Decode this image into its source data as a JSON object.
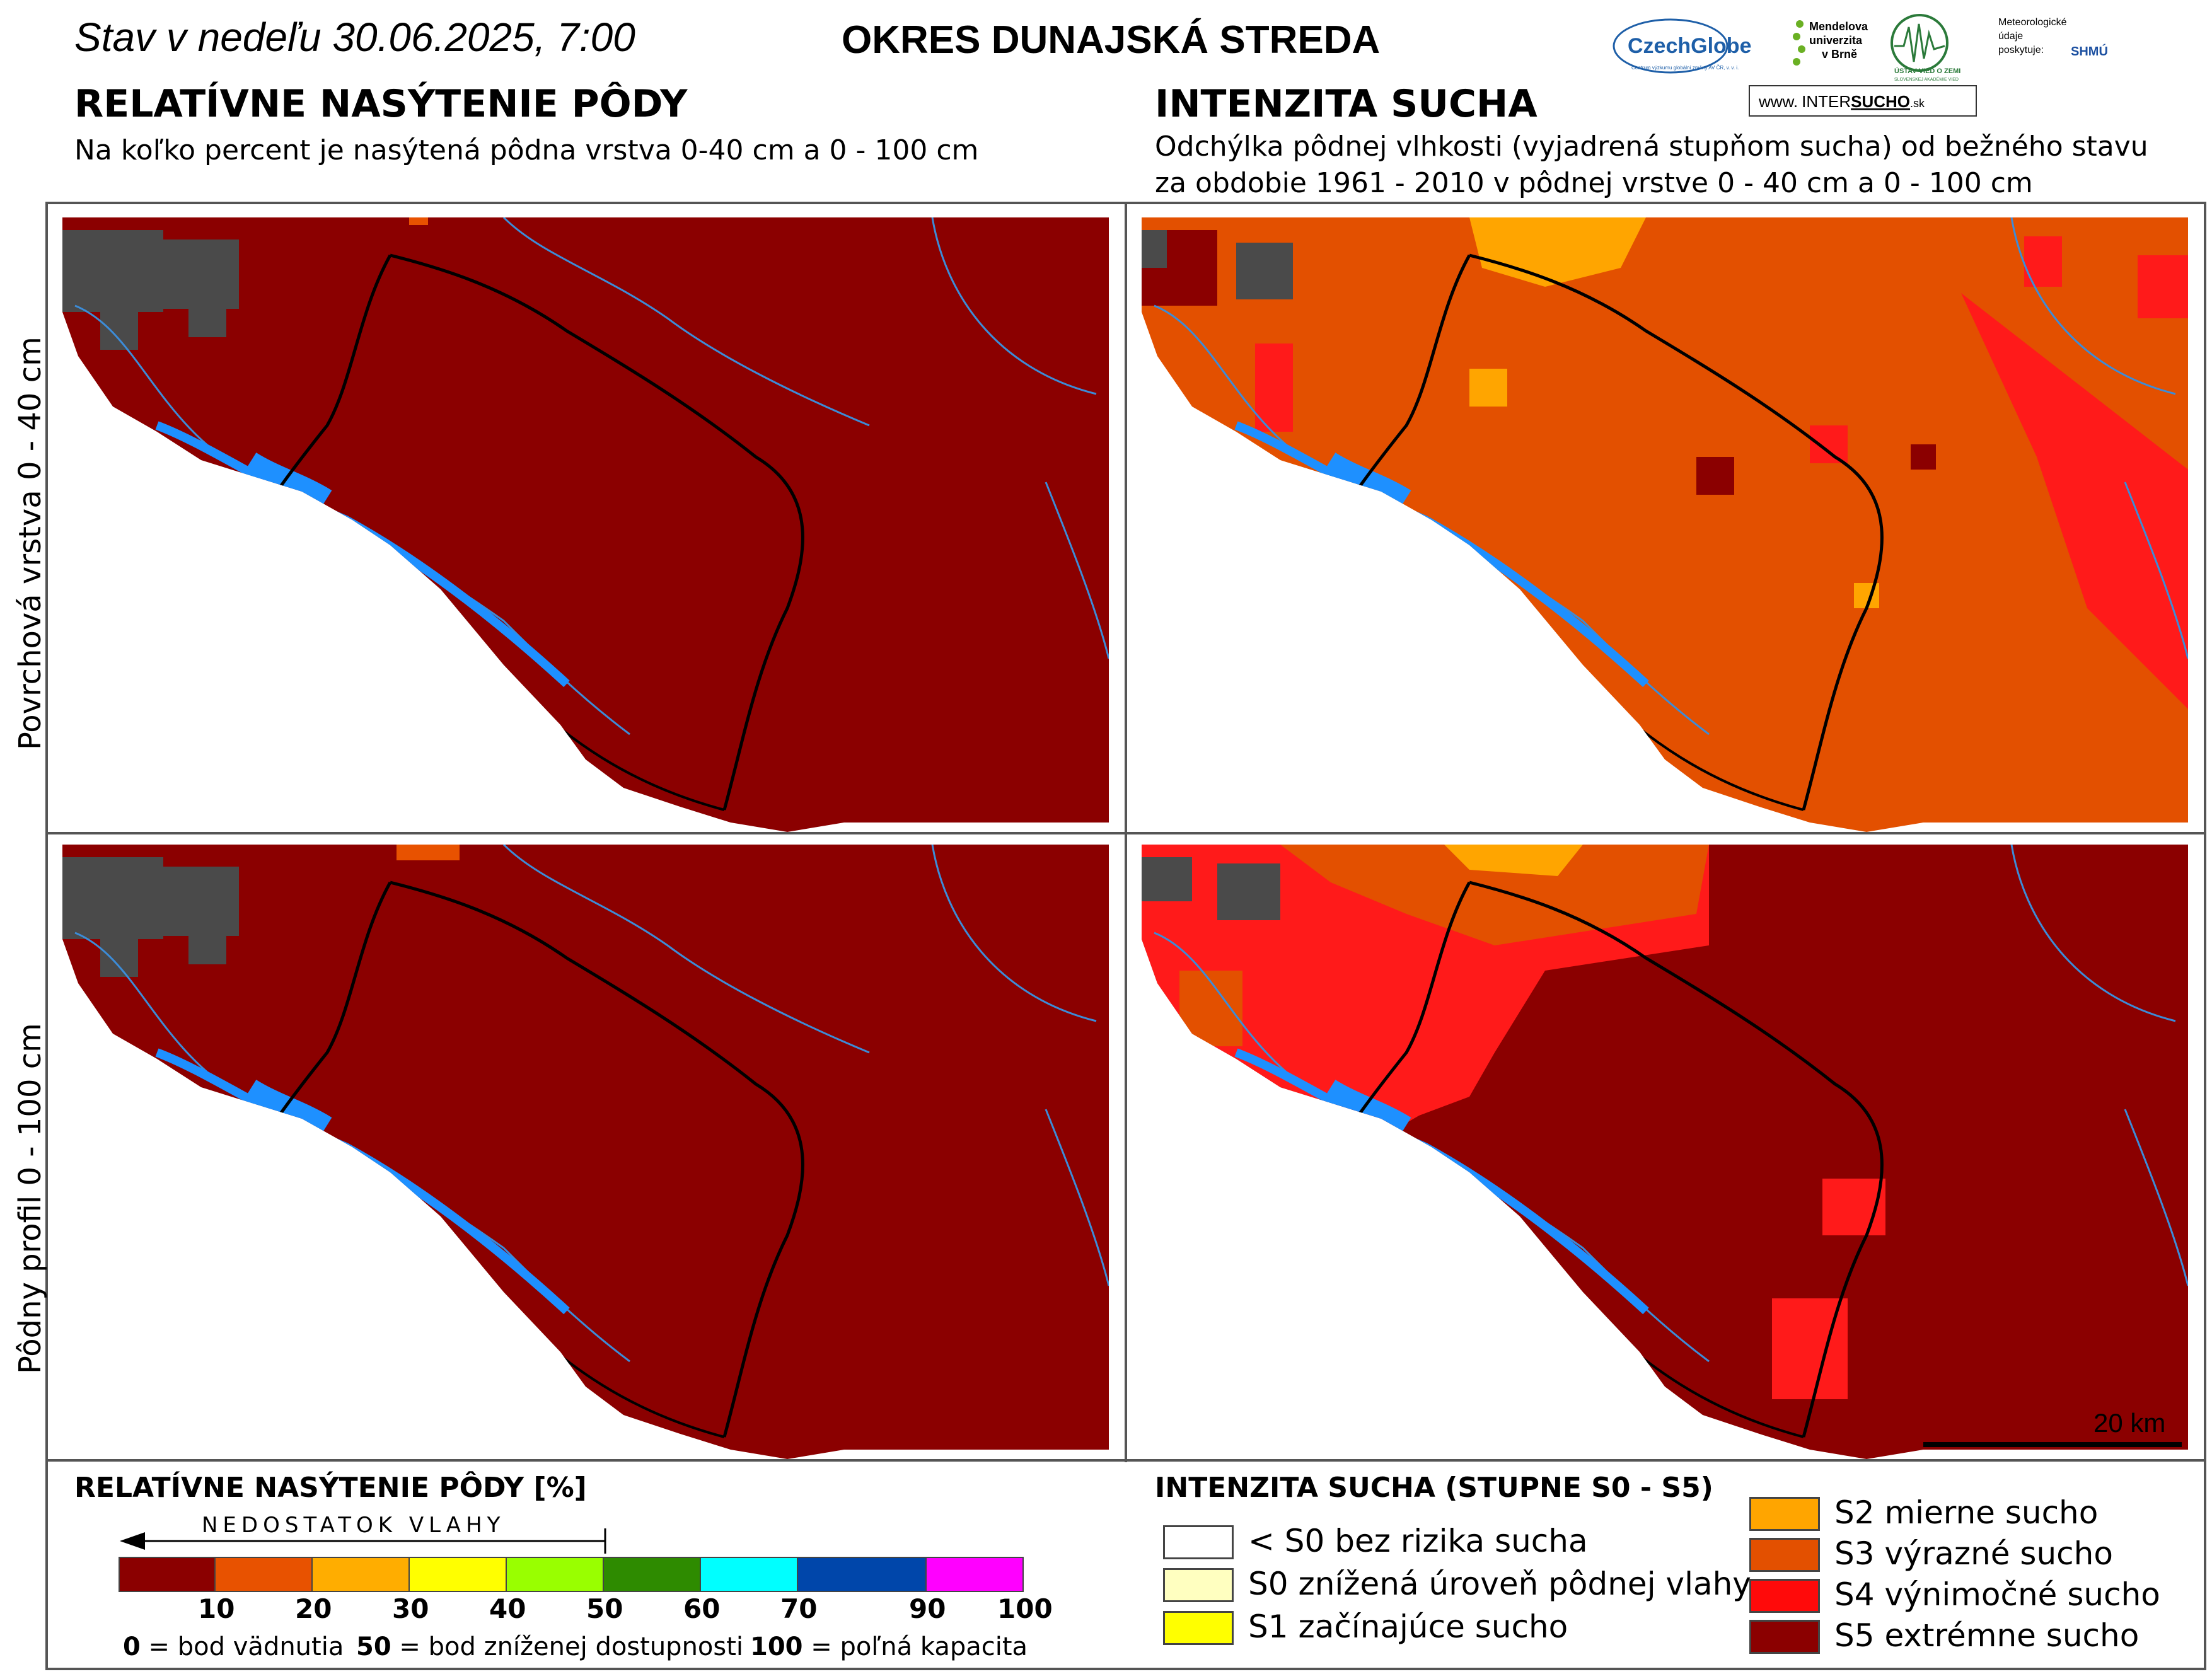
{
  "header": {
    "date_label": "Stav v nedeľu 30.06.2025, 7:00",
    "district": "OKRES  DUNAJSKÁ STREDA"
  },
  "logos": {
    "czechglobe": "CzechGlobe",
    "czechglobe_sub": "Centrum výzkumu globální změny AV ČR, v. v. i.",
    "mendel": [
      "Mendelova",
      "univerzita",
      "v Brně"
    ],
    "uvz": "ÚSTAV VIED O ZEMI",
    "uvz_sub": "SLOVENSKEJ AKADÉMIE VIED",
    "meteo": [
      "Meteorologické",
      "údaje",
      "poskytuje:"
    ],
    "shmu": "SHMÚ",
    "intersucho_prefix": "www.",
    "intersucho_a": "INTER",
    "intersucho_b": "SUCHO",
    "intersucho_suffix": ".sk"
  },
  "left_section": {
    "title": "RELATÍVNE NASÝTENIE PÔDY",
    "subtitle": "Na koľko percent je nasýtená pôdna vrstva 0-40 cm a 0 - 100 cm"
  },
  "right_section": {
    "title": "INTENZITA SUCHA",
    "subtitle_1": "Odchýlka pôdnej vlhkosti (vyjadrená stupňom sucha) od bežného stavu",
    "subtitle_2": "za obdobie 1961 - 2010 v pôdnej vrstve 0 - 40 cm a 0 - 100 cm"
  },
  "row_labels": {
    "top": "Povrchová vrstva 0 - 40 cm",
    "bottom": "Pôdny profil 0 - 100 cm"
  },
  "scale_bar": {
    "label": "20 km"
  },
  "saturation_legend": {
    "title": "RELATÍVNE NASÝTENIE PÔDY [%]",
    "arrow_label": "NEDOSTATOK VLAHY",
    "classes": [
      {
        "color": "#8b0000",
        "upper": "10"
      },
      {
        "color": "#e85200",
        "upper": "20"
      },
      {
        "color": "#ffad00",
        "upper": "30"
      },
      {
        "color": "#ffff00",
        "upper": "40"
      },
      {
        "color": "#99ff00",
        "upper": "50"
      },
      {
        "color": "#2e8b00",
        "upper": "60"
      },
      {
        "color": "#00ffff",
        "upper": "70"
      },
      {
        "color": "#0046aa",
        "upper": "90"
      },
      {
        "color": "#ff00ff",
        "upper": "100"
      }
    ],
    "note_0_num": "0",
    "note_0_text": " = bod vädnutia",
    "note_50_num": "50",
    "note_50_text": " = bod zníženej dostupnosti",
    "note_100_num": "100",
    "note_100_text": " = poľná kapacita"
  },
  "drought_legend": {
    "title": "INTENZITA SUCHA (STUPNE S0 - S5)",
    "items": [
      {
        "color": "#ffffff",
        "label": "< S0 bez rizika sucha"
      },
      {
        "color": "#ffffc0",
        "label": "S0 znížená úroveň pôdnej vlahy"
      },
      {
        "color": "#ffff00",
        "label": "S1 začínajúce sucho"
      },
      {
        "color": "#ffa500",
        "label": "S2 mierne sucho"
      },
      {
        "color": "#e35000",
        "label": "S3 výrazné sucho"
      },
      {
        "color": "#ff0a0a",
        "label": "S4 výnimočné sucho"
      },
      {
        "color": "#8b0000",
        "label": "S5 extrémne sucho"
      }
    ]
  },
  "colors": {
    "dark_red": "#8b0000",
    "orange_s3": "#e35000",
    "red_s4": "#ff1a1a",
    "orange_s2": "#ffa500",
    "river": "#1e90ff",
    "urban": "#4a4a4a",
    "border": "#555555"
  }
}
